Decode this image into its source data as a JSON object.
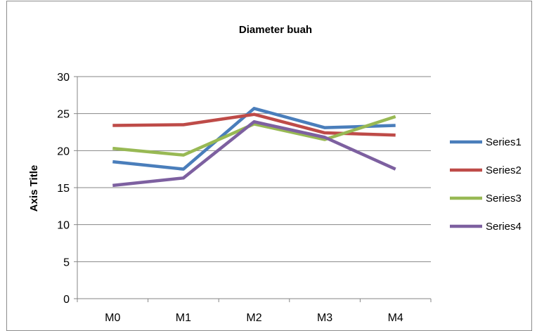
{
  "chart_data": {
    "type": "line",
    "title": "Diameter buah",
    "ylabel": "Axis Title",
    "xlabel": "",
    "categories": [
      "M0",
      "M1",
      "M2",
      "M3",
      "M4"
    ],
    "ylim": [
      0,
      30
    ],
    "yticks": [
      0,
      5,
      10,
      15,
      20,
      25,
      30
    ],
    "grid": true,
    "legend": "right",
    "series": [
      {
        "name": "Series1",
        "color": "#4a7ebb",
        "values": [
          18.5,
          17.5,
          25.7,
          23.1,
          23.4
        ]
      },
      {
        "name": "Series2",
        "color": "#be4b48",
        "values": [
          23.4,
          23.5,
          24.9,
          22.4,
          22.1
        ]
      },
      {
        "name": "Series3",
        "color": "#98b954",
        "values": [
          20.3,
          19.4,
          23.6,
          21.5,
          24.6
        ]
      },
      {
        "name": "Series4",
        "color": "#7d60a0",
        "values": [
          15.3,
          16.3,
          23.9,
          21.8,
          17.5
        ]
      }
    ]
  }
}
